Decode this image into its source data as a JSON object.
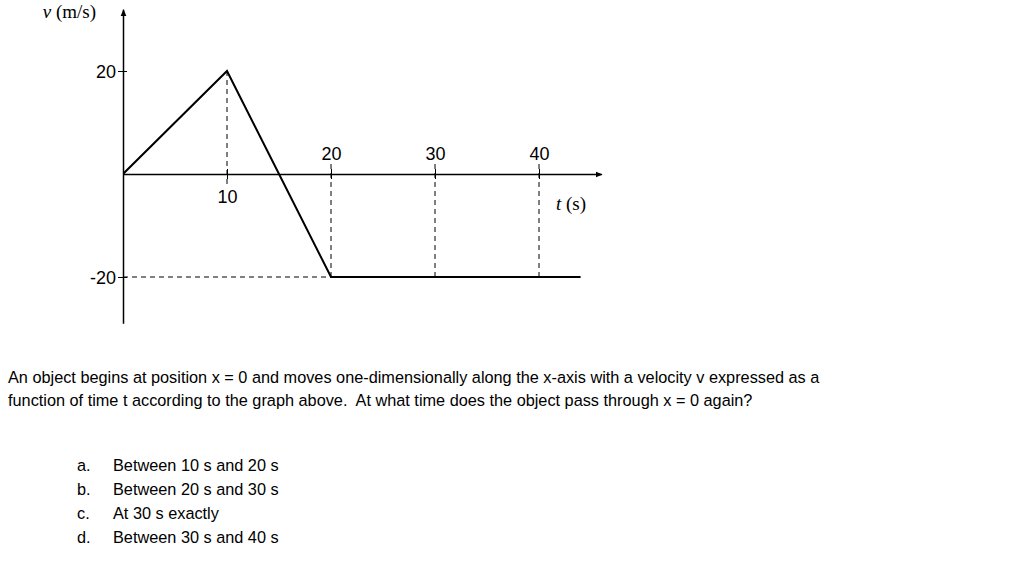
{
  "chart_data": {
    "type": "line",
    "x": [
      0,
      10,
      20,
      30,
      40,
      44
    ],
    "values": [
      0,
      20,
      -20,
      -20,
      -20,
      -20
    ],
    "color": "#000000",
    "x_label": "t (s)",
    "y_label": "v (m/s)",
    "xlim": [
      0,
      46
    ],
    "ylim": [
      -29,
      32
    ],
    "xticks": [
      10,
      20,
      30,
      40
    ],
    "yticks": [
      20,
      -20
    ]
  },
  "question": {
    "lines": [
      "An object begins at position x = 0 and moves one-dimensionally along the x-axis with a velocity v expressed as a",
      "function of time t according to the graph above.  At what time does the object pass through x = 0 again?"
    ],
    "options": [
      {
        "label": "a.",
        "text": "Between 10 s and 20 s"
      },
      {
        "label": "b.",
        "text": "Between 20 s and 30 s"
      },
      {
        "label": "c.",
        "text": "At 30 s exactly"
      },
      {
        "label": "d.",
        "text": "Between 30 s and 40 s"
      }
    ]
  }
}
